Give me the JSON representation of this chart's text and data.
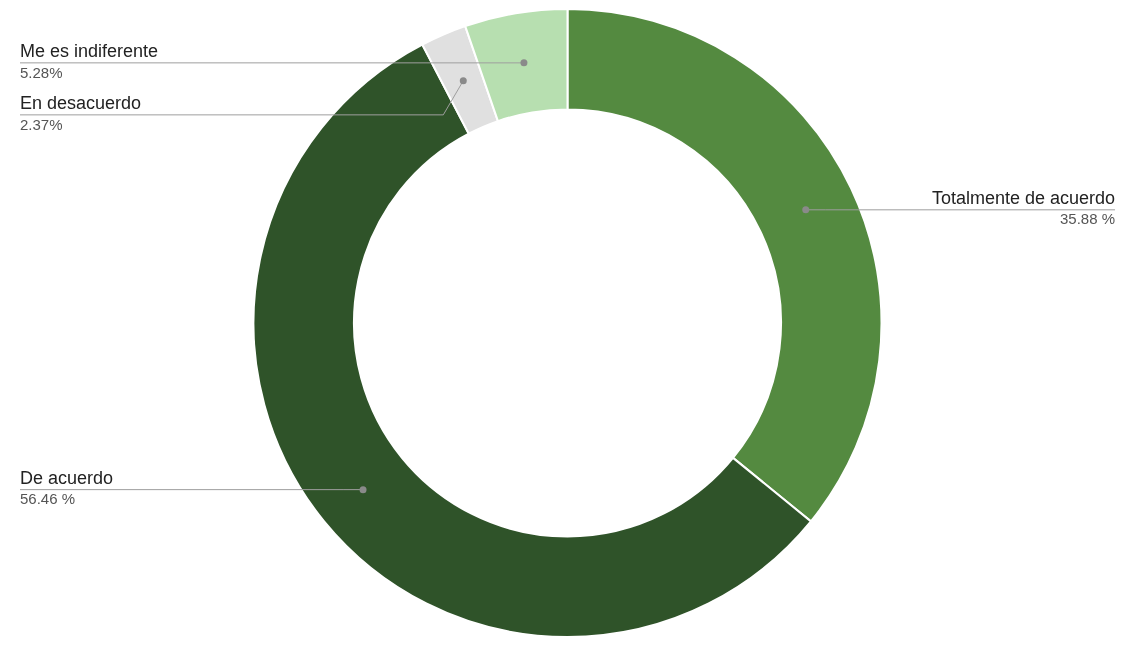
{
  "chart_data": {
    "type": "donut",
    "categories": [
      "Totalmente de acuerdo",
      "De acuerdo",
      "En desacuerdo",
      "Me es indiferente"
    ],
    "values": [
      35.88,
      56.46,
      2.37,
      5.28
    ],
    "colors": [
      "#548a40",
      "#2f5329",
      "#e0e0e0",
      "#b7dfb0"
    ],
    "value_labels": [
      "35.88 %",
      "56.46 %",
      "2.37%",
      "5.28%"
    ],
    "legend": false
  }
}
